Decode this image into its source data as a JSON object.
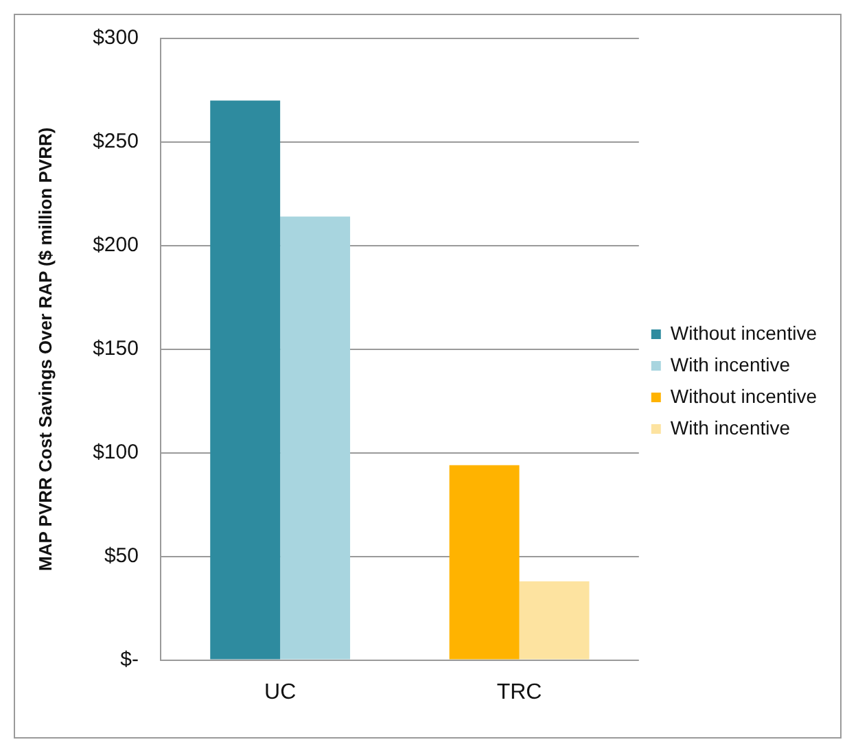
{
  "chart_data": {
    "type": "bar",
    "ylabel": "MAP PVRR Cost Savings Over RAP ($ million PVRR)",
    "categories": [
      "UC",
      "TRC"
    ],
    "series": [
      {
        "name": "Without incentive",
        "color": "#2e8b9f",
        "values": [
          270,
          null
        ]
      },
      {
        "name": "With incentive",
        "color": "#a8d5df",
        "values": [
          214,
          null
        ]
      },
      {
        "name": "Without incentive",
        "color": "#ffb300",
        "values": [
          null,
          94
        ]
      },
      {
        "name": "With incentive",
        "color": "#fde3a0",
        "values": [
          null,
          38
        ]
      }
    ],
    "ylim": [
      0,
      300
    ],
    "yticks": [
      {
        "value": 0,
        "label": "$-"
      },
      {
        "value": 50,
        "label": "$50"
      },
      {
        "value": 100,
        "label": "$100"
      },
      {
        "value": 150,
        "label": "$150"
      },
      {
        "value": 200,
        "label": "$200"
      },
      {
        "value": 250,
        "label": "$250"
      },
      {
        "value": 300,
        "label": "$300"
      }
    ],
    "grid": "y",
    "legend": "right"
  }
}
